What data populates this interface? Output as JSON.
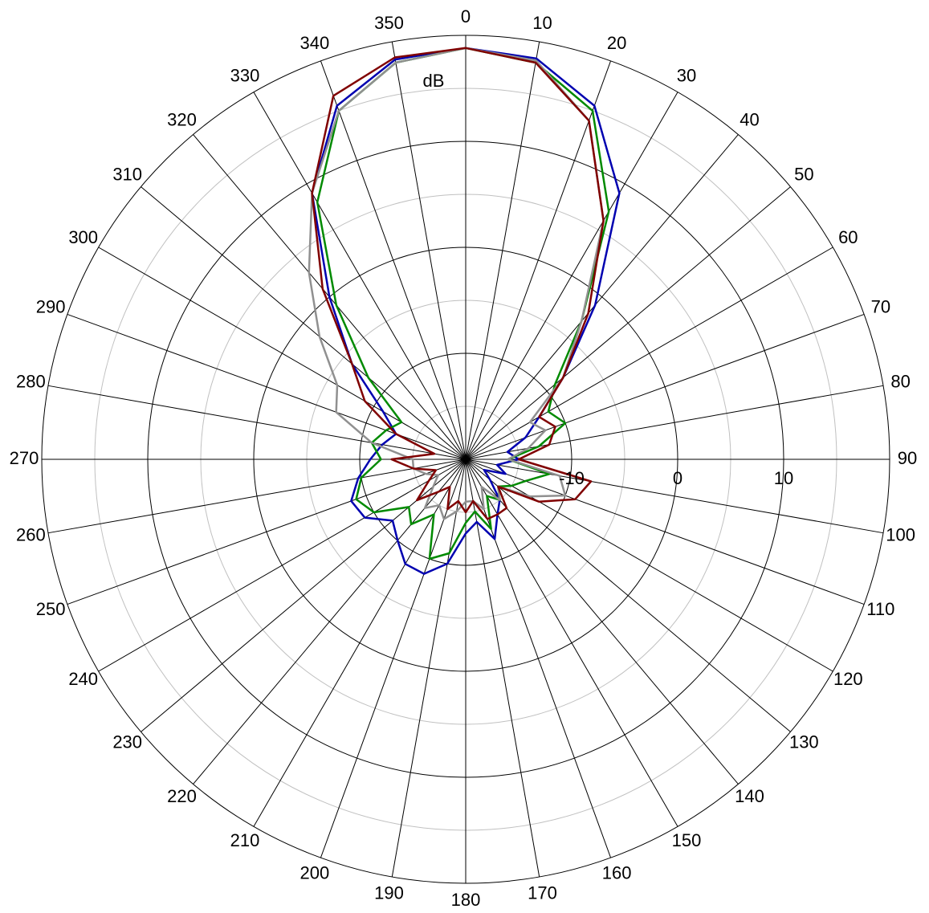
{
  "chart_data": {
    "type": "polar",
    "r_label": "dB",
    "rlim": [
      -20,
      20
    ],
    "rticks": [
      -10,
      0,
      10
    ],
    "rminor": [
      -15,
      -5,
      5,
      15
    ],
    "thetaticks": [
      0,
      10,
      20,
      30,
      40,
      50,
      60,
      70,
      80,
      90,
      100,
      110,
      120,
      130,
      140,
      150,
      160,
      170,
      180,
      190,
      200,
      210,
      220,
      230,
      240,
      250,
      260,
      270,
      280,
      290,
      300,
      310,
      320,
      330,
      340,
      350
    ],
    "x": [
      0,
      10,
      20,
      30,
      40,
      50,
      60,
      70,
      80,
      90,
      100,
      110,
      120,
      130,
      140,
      150,
      160,
      170,
      180,
      190,
      200,
      210,
      220,
      230,
      240,
      250,
      260,
      270,
      280,
      290,
      300,
      310,
      320,
      330,
      340,
      350
    ],
    "series": [
      {
        "color": "#0000b0",
        "values": [
          18.8,
          18.4,
          15.5,
          9,
          -1,
          -8,
          -12,
          -14,
          -16,
          -15,
          -17,
          -16,
          -18,
          -17,
          -15,
          -14,
          -12,
          -14,
          -13,
          -10,
          -8.5,
          -8.6,
          -10,
          -11,
          -9,
          -8.5,
          -9.7,
          -11,
          -12,
          -13,
          -11,
          -6,
          0,
          9,
          15.5,
          18.3
        ]
      },
      {
        "color": "#008a00",
        "values": [
          18.8,
          18,
          15,
          7,
          -3,
          -9,
          -11,
          -10,
          -13,
          -16,
          -12,
          -14,
          -15,
          -16,
          -15,
          -16,
          -13,
          -15,
          -14,
          -11,
          -10,
          -14,
          -12,
          -13,
          -10,
          -9,
          -10,
          -12,
          -11,
          -12,
          -13,
          -8,
          -1,
          8,
          15,
          18
        ]
      },
      {
        "color": "#909090",
        "values": [
          18.8,
          18.2,
          14,
          6,
          -3,
          -8,
          -13,
          -12,
          -14,
          -16,
          -11,
          -10,
          -13,
          -16,
          -15,
          -17,
          -15,
          -16,
          -16,
          -15,
          -14,
          -15,
          -14,
          -16,
          -17,
          -16,
          -15,
          -15,
          -11,
          -7,
          -6,
          -2,
          3,
          9,
          15,
          18
        ]
      },
      {
        "color": "#800000",
        "values": [
          18.8,
          18,
          14,
          6,
          -2,
          -8,
          -12,
          -11,
          -12,
          -15,
          -8,
          -9,
          -12,
          -16,
          -14,
          -14,
          -14,
          -16,
          -15,
          -16,
          -15,
          -17,
          -16,
          -14,
          -16,
          -17,
          -15,
          -13,
          -17,
          -13,
          -9,
          -6,
          1,
          9,
          16.5,
          18.5
        ]
      }
    ]
  }
}
